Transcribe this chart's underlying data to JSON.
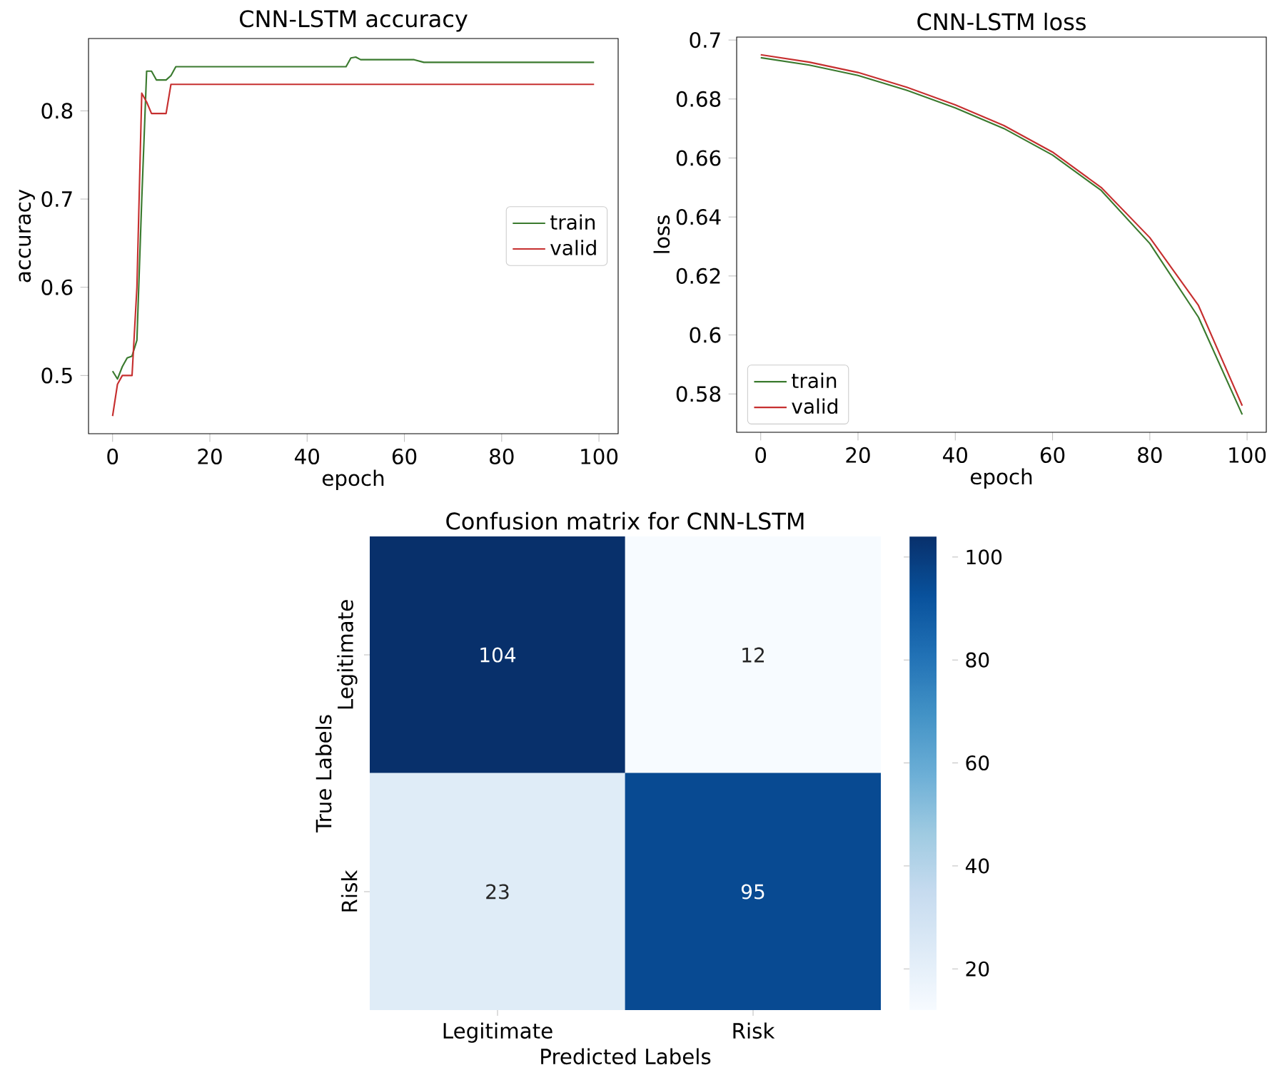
{
  "chart_data": [
    {
      "type": "line",
      "title": "CNN-LSTM accuracy",
      "xlabel": "epoch",
      "ylabel": "accuracy",
      "xlim": [
        -4.95,
        103.95
      ],
      "ylim": [
        0.434,
        0.882
      ],
      "xticks": [
        0,
        20,
        40,
        60,
        80,
        100
      ],
      "yticks": [
        0.5,
        0.6,
        0.7,
        0.8
      ],
      "legend": "right",
      "series": [
        {
          "name": "train",
          "color": "#3a7a2e",
          "x": [
            0,
            1,
            2,
            3,
            4,
            5,
            6,
            7,
            8,
            9,
            10,
            11,
            12,
            13,
            20,
            30,
            40,
            48,
            49,
            50,
            51,
            55,
            62,
            64,
            70,
            80,
            90,
            99
          ],
          "values": [
            0.505,
            0.496,
            0.51,
            0.52,
            0.522,
            0.54,
            0.7,
            0.845,
            0.845,
            0.835,
            0.835,
            0.835,
            0.84,
            0.85,
            0.85,
            0.85,
            0.85,
            0.85,
            0.86,
            0.861,
            0.858,
            0.858,
            0.858,
            0.855,
            0.855,
            0.855,
            0.855,
            0.855
          ]
        },
        {
          "name": "valid",
          "color": "#c62f2f",
          "x": [
            0,
            1,
            2,
            3,
            4,
            5,
            6,
            7,
            8,
            9,
            10,
            11,
            12,
            20,
            40,
            60,
            80,
            99
          ],
          "values": [
            0.454,
            0.49,
            0.5,
            0.5,
            0.5,
            0.6,
            0.82,
            0.81,
            0.797,
            0.797,
            0.797,
            0.797,
            0.83,
            0.83,
            0.83,
            0.83,
            0.83,
            0.83
          ]
        }
      ]
    },
    {
      "type": "line",
      "title": "CNN-LSTM loss",
      "xlabel": "epoch",
      "ylabel": "loss",
      "xlim": [
        -4.95,
        103.95
      ],
      "ylim": [
        0.567,
        0.701
      ],
      "xticks": [
        0,
        20,
        40,
        60,
        80,
        100
      ],
      "yticks": [
        0.58,
        0.6,
        0.62,
        0.64,
        0.66,
        0.68,
        0.7
      ],
      "legend": "bottom left",
      "series": [
        {
          "name": "train",
          "color": "#3a7a2e",
          "x": [
            0,
            10,
            20,
            30,
            40,
            50,
            60,
            70,
            80,
            90,
            99
          ],
          "values": [
            0.694,
            0.6915,
            0.688,
            0.683,
            0.677,
            0.67,
            0.661,
            0.649,
            0.631,
            0.606,
            0.573
          ]
        },
        {
          "name": "valid",
          "color": "#c62f2f",
          "x": [
            0,
            10,
            20,
            30,
            40,
            50,
            60,
            70,
            80,
            90,
            99
          ],
          "values": [
            0.695,
            0.6925,
            0.689,
            0.684,
            0.678,
            0.671,
            0.662,
            0.65,
            0.633,
            0.61,
            0.576
          ]
        }
      ]
    },
    {
      "type": "heatmap",
      "title": "Confusion matrix for CNN-LSTM",
      "xlabel": "Predicted Labels",
      "ylabel": "True Labels",
      "categories": [
        "Legitimate",
        "Risk"
      ],
      "y_categories": [
        "Legitimate",
        "Risk"
      ],
      "cells": [
        [
          104,
          12
        ],
        [
          23,
          95
        ]
      ],
      "clim": [
        12,
        104
      ],
      "cticks": [
        20,
        40,
        60,
        80,
        100
      ],
      "data_labels": true
    }
  ]
}
